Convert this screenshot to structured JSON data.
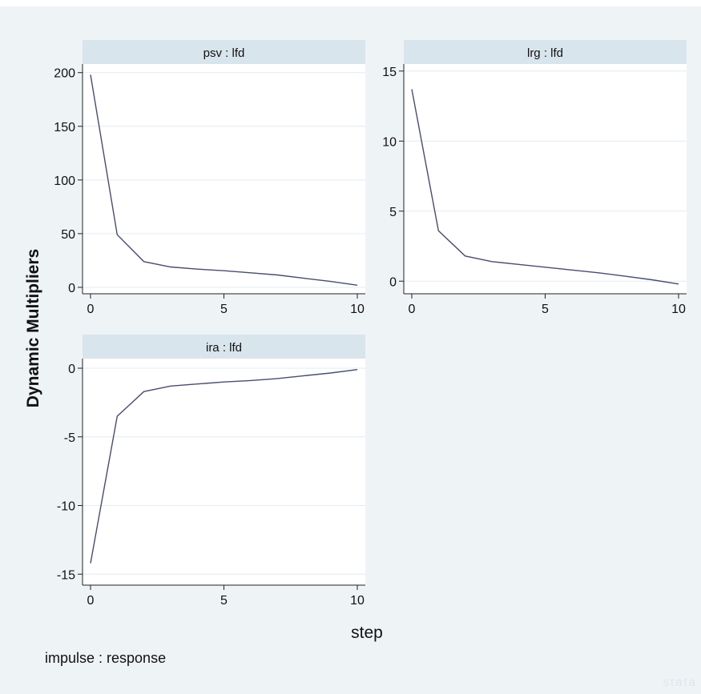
{
  "chart_data": {
    "type": "line",
    "ylabel": "Dynamic Multipliers",
    "xlabel": "step",
    "note": "impulse : response",
    "watermark": "stata",
    "panels": [
      {
        "title": "psv : lfd",
        "x": [
          0,
          1,
          2,
          3,
          4,
          5,
          6,
          7,
          8,
          9,
          10
        ],
        "values": [
          198,
          49,
          24,
          19,
          17,
          15.5,
          13.5,
          11.5,
          8.5,
          5.5,
          2
        ],
        "ylim": [
          -6,
          208
        ],
        "yticks": [
          0,
          50,
          100,
          150,
          200
        ],
        "xticks": [
          0,
          5,
          10
        ],
        "xlim": [
          -0.3,
          10.3
        ],
        "grid": true
      },
      {
        "title": "lrg : lfd",
        "x": [
          0,
          1,
          2,
          3,
          4,
          5,
          6,
          7,
          8,
          9,
          10
        ],
        "values": [
          13.7,
          3.6,
          1.8,
          1.4,
          1.2,
          1.0,
          0.8,
          0.6,
          0.35,
          0.1,
          -0.2
        ],
        "ylim": [
          -0.9,
          15.5
        ],
        "yticks": [
          0,
          5,
          10,
          15
        ],
        "xticks": [
          0,
          5,
          10
        ],
        "xlim": [
          -0.3,
          10.3
        ],
        "grid": true
      },
      {
        "title": "ira : lfd",
        "x": [
          0,
          1,
          2,
          3,
          4,
          5,
          6,
          7,
          8,
          9,
          10
        ],
        "values": [
          -14.2,
          -3.5,
          -1.7,
          -1.3,
          -1.15,
          -1.0,
          -0.9,
          -0.75,
          -0.55,
          -0.35,
          -0.1
        ],
        "ylim": [
          -15.8,
          0.7
        ],
        "yticks": [
          -15,
          -10,
          -5,
          0
        ],
        "xticks": [
          0,
          5,
          10
        ],
        "xlim": [
          -0.3,
          10.3
        ],
        "grid": true
      }
    ],
    "colors": {
      "background": "#eef3f6",
      "plot": "#ffffff",
      "title_strip": "#d9e5ec",
      "grid": "#e2ecf2",
      "line": "#4a4c6e",
      "axis": "#222222"
    }
  }
}
